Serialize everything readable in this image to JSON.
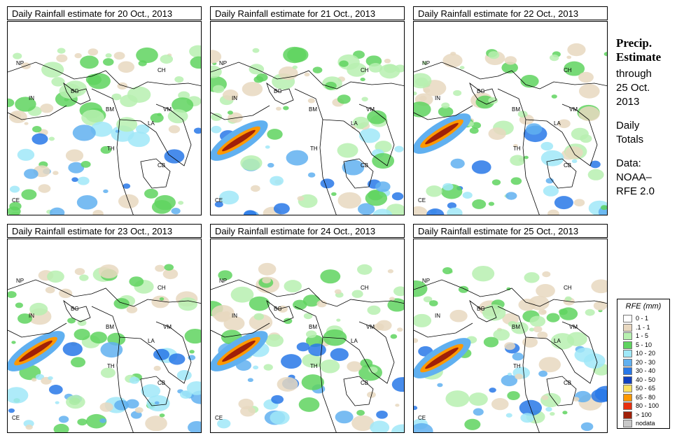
{
  "panels": [
    {
      "title": "Daily Rainfall estimate for  20 Oct., 2013",
      "intensity": 1
    },
    {
      "title": "Daily Rainfall estimate for  21 Oct., 2013",
      "intensity": 2
    },
    {
      "title": "Daily Rainfall estimate for  22 Oct., 2013",
      "intensity": 3
    },
    {
      "title": "Daily Rainfall estimate for  23 Oct., 2013",
      "intensity": 3
    },
    {
      "title": "Daily Rainfall estimate for  24 Oct., 2013",
      "intensity": 3
    },
    {
      "title": "Daily Rainfall estimate for  25 Oct., 2013",
      "intensity": 2
    }
  ],
  "country_labels": [
    "NP",
    "IN",
    "BG",
    "CH",
    "BM",
    "VM",
    "LA",
    "TH",
    "CB",
    "CE"
  ],
  "side": {
    "title_line1": "Precip.",
    "title_line2": "Estimate",
    "through": "through",
    "date_line1": "25 Oct.",
    "date_line2": "2013",
    "daily_line1": "Daily",
    "daily_line2": "Totals",
    "data_line1": "Data:",
    "data_line2": "NOAA–",
    "data_line3": "RFE 2.0"
  },
  "legend": {
    "title": "RFE (mm)",
    "items": [
      {
        "label": "0 - 1",
        "color": "#ffffff"
      },
      {
        "label": ".1 - 1",
        "color": "#e8d8c0"
      },
      {
        "label": "1 - 5",
        "color": "#b7f0b0"
      },
      {
        "label": "5 - 10",
        "color": "#5fd35f"
      },
      {
        "label": "10 - 20",
        "color": "#a0e8f8"
      },
      {
        "label": "20 - 30",
        "color": "#60b0f0"
      },
      {
        "label": "30 - 40",
        "color": "#2878e8"
      },
      {
        "label": "40 - 50",
        "color": "#1040c0"
      },
      {
        "label": "50 - 65",
        "color": "#ffe060"
      },
      {
        "label": "65 - 80",
        "color": "#ff9800"
      },
      {
        "label": "80 - 100",
        "color": "#e83010"
      },
      {
        "label": "> 100",
        "color": "#a02008"
      },
      {
        "label": "nodata",
        "color": "#c8c8c8"
      }
    ]
  }
}
